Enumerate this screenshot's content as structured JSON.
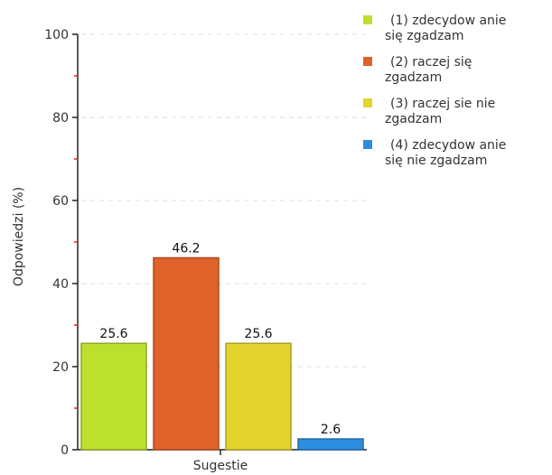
{
  "chart_data": {
    "type": "bar",
    "title": "",
    "xlabel": "Sugestie",
    "ylabel": "Odpowiedzi (%)",
    "ylim": [
      0,
      100
    ],
    "yticks": [
      0,
      20,
      40,
      60,
      80,
      100
    ],
    "grid": true,
    "legend_position": "right",
    "categories": [
      "Sugestie"
    ],
    "series": [
      {
        "name": "(1) zdecydowanie się zgadzam",
        "legend_lines": [
          "(1) zdecydow anie",
          "się zgadzam"
        ],
        "values": [
          25.6
        ],
        "label": "25.6",
        "color": "#bde02f"
      },
      {
        "name": "(2) raczej się zgadzam",
        "legend_lines": [
          "(2) raczej się",
          "zgadzam"
        ],
        "values": [
          46.2
        ],
        "label": "46.2",
        "color": "#e0622b"
      },
      {
        "name": "(3) raczej sie nie zgadzam",
        "legend_lines": [
          "(3) raczej sie nie",
          "zgadzam"
        ],
        "values": [
          25.6
        ],
        "label": "25.6",
        "color": "#e5d32f"
      },
      {
        "name": "(4) zdecydowanie się nie zgadzam",
        "legend_lines": [
          "(4) zdecydow anie",
          "się nie zgadzam"
        ],
        "values": [
          2.6
        ],
        "label": "2.6",
        "color": "#2d8ee0"
      }
    ]
  }
}
